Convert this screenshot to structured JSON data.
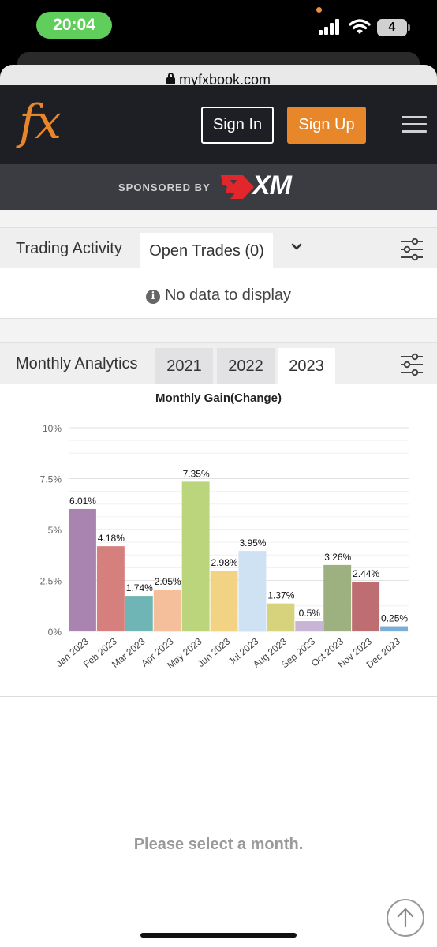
{
  "status_bar": {
    "time": "20:04",
    "battery": "4"
  },
  "browser": {
    "url": "myfxbook.com"
  },
  "header": {
    "logo": "fx",
    "sign_in": "Sign In",
    "sign_up": "Sign Up"
  },
  "sponsor": {
    "label": "SPONSORED BY",
    "brand": "XM"
  },
  "trading_activity": {
    "title": "Trading Activity",
    "tab": "Open Trades (0)",
    "empty_message": "No data to display"
  },
  "monthly_analytics": {
    "title": "Monthly Analytics",
    "years": [
      "2021",
      "2022",
      "2023"
    ],
    "selected_year": "2023"
  },
  "chart_data": {
    "type": "bar",
    "title": "Monthly Gain(Change)",
    "categories": [
      "Jan 2023",
      "Feb 2023",
      "Mar 2023",
      "Apr 2023",
      "May 2023",
      "Jun 2023",
      "Jul 2023",
      "Aug 2023",
      "Sep 2023",
      "Oct 2023",
      "Nov 2023",
      "Dec 2023"
    ],
    "values": [
      6.01,
      4.18,
      1.74,
      2.05,
      7.35,
      2.98,
      3.95,
      1.37,
      0.5,
      3.26,
      2.44,
      0.25
    ],
    "value_labels": [
      "6.01%",
      "4.18%",
      "1.74%",
      "2.05%",
      "7.35%",
      "2.98%",
      "3.95%",
      "1.37%",
      "0.5%",
      "3.26%",
      "2.44%",
      "0.25%"
    ],
    "colors": [
      "#a984b0",
      "#d5807c",
      "#6fb5b6",
      "#f4bf9a",
      "#bad57c",
      "#f2d283",
      "#cfe2f4",
      "#d6d37c",
      "#c8b4d4",
      "#9db07f",
      "#be6d71",
      "#7aaed6"
    ],
    "yticks": [
      "0%",
      "2.5%",
      "5%",
      "7.5%",
      "10%"
    ],
    "ylim": [
      0,
      10
    ],
    "grid": true
  },
  "month_detail": {
    "message": "Please select a month."
  }
}
